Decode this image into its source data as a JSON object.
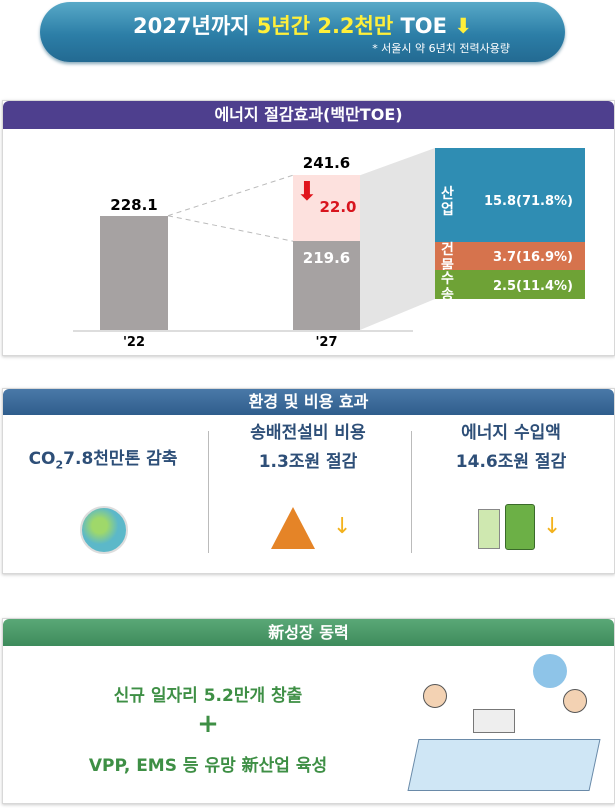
{
  "banner": {
    "title_prefix": "2027년까지 ",
    "title_highlight": "5년간 2.2천만",
    "title_suffix": " TOE",
    "arrow_icon": "down-arrow-yellow",
    "note": "* 서울시  약 6년치  전력사용량"
  },
  "energy_section": {
    "title": "에너지 절감효과(백만TOE)",
    "header_color": "#4e3f8e"
  },
  "chart_data": {
    "type": "bar",
    "categories": [
      "'22",
      "'27"
    ],
    "values": [
      228.1,
      219.6
    ],
    "reduction": {
      "value": 22.0,
      "total_label": "241.6",
      "label": "22.0"
    },
    "value_labels": [
      "228.1",
      "219.6"
    ],
    "breakdown": [
      {
        "sector": "산업",
        "value_label": "15.8(71.8%)",
        "value": 15.8,
        "share": 71.8,
        "color": "#2f8db3"
      },
      {
        "sector": "건물",
        "value_label": "3.7(16.9%)",
        "value": 3.7,
        "share": 16.9,
        "color": "#d6734d"
      },
      {
        "sector": "수송",
        "value_label": "2.5(11.4%)",
        "value": 2.5,
        "share": 11.4,
        "color": "#6ea236"
      }
    ]
  },
  "env_section": {
    "title": "환경 및 비용 효과",
    "header_color": "#2f5d8c",
    "items": [
      {
        "line1": "CO",
        "sub": "2",
        "line1b": "7.8천만톤 감축",
        "icon": "earth-icon"
      },
      {
        "line1": "송배전설비 비용",
        "line2": "1.3조원 절감",
        "icon": "power-tower-icon"
      },
      {
        "line1": "에너지 수입액",
        "line2": "14.6조원 절감",
        "icon": "oil-barrel-icon"
      }
    ]
  },
  "growth_section": {
    "title": "新성장 동력",
    "header_color": "#3e8b5c",
    "line1": "신규 일자리 5.2만개 창출",
    "plus": "+",
    "line2": "VPP, EMS 등 유망 新산업 육성",
    "illustration": "researchers-illustration"
  }
}
